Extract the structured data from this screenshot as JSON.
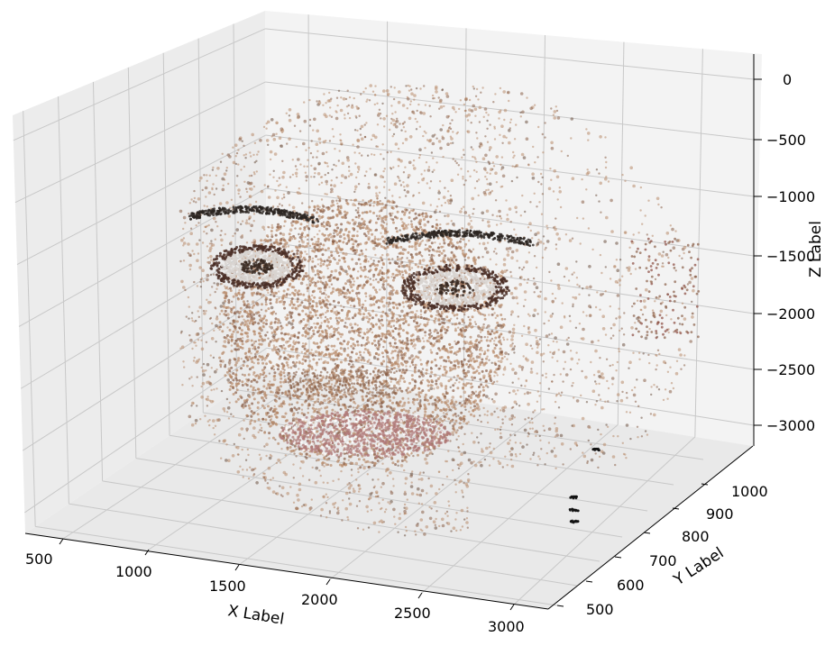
{
  "chart_data": {
    "type": "scatter",
    "projection": "3d",
    "subject": "point cloud of a human face, each point colored by source image pixel",
    "xlabel": "X Label",
    "ylabel": "Y Label",
    "zlabel": "Z Label",
    "xlim": [
      300,
      3100
    ],
    "ylim": [
      440,
      1060
    ],
    "zlim": [
      -3150,
      100
    ],
    "x_ticks": [
      500,
      1000,
      1500,
      2000,
      2500,
      3000
    ],
    "y_ticks": [
      500,
      600,
      700,
      800,
      900,
      1000
    ],
    "z_ticks": [
      0,
      -500,
      -1000,
      -1500,
      -2000,
      -2500,
      -3000
    ],
    "x_tick_labels": [
      "500",
      "1000",
      "1500",
      "2000",
      "2500",
      "3000"
    ],
    "y_tick_labels": [
      "500",
      "600",
      "700",
      "800",
      "900",
      "1000"
    ],
    "z_tick_labels": [
      "0",
      "−500",
      "−1000",
      "−1500",
      "−2000",
      "−2500",
      "−3000"
    ],
    "grid": true,
    "pane_color": "#f2f2f2",
    "grid_color": "#c8c8c8",
    "point_colors": {
      "skin": "#b88a6a",
      "skin_dark": "#8a6048",
      "hair": "#6b5040",
      "eyebrow": "#2a2420",
      "eye_white": "#d8d4d0",
      "iris": "#3a2a22",
      "lips": "#b07a78",
      "shadow": "#4a2e26"
    }
  }
}
